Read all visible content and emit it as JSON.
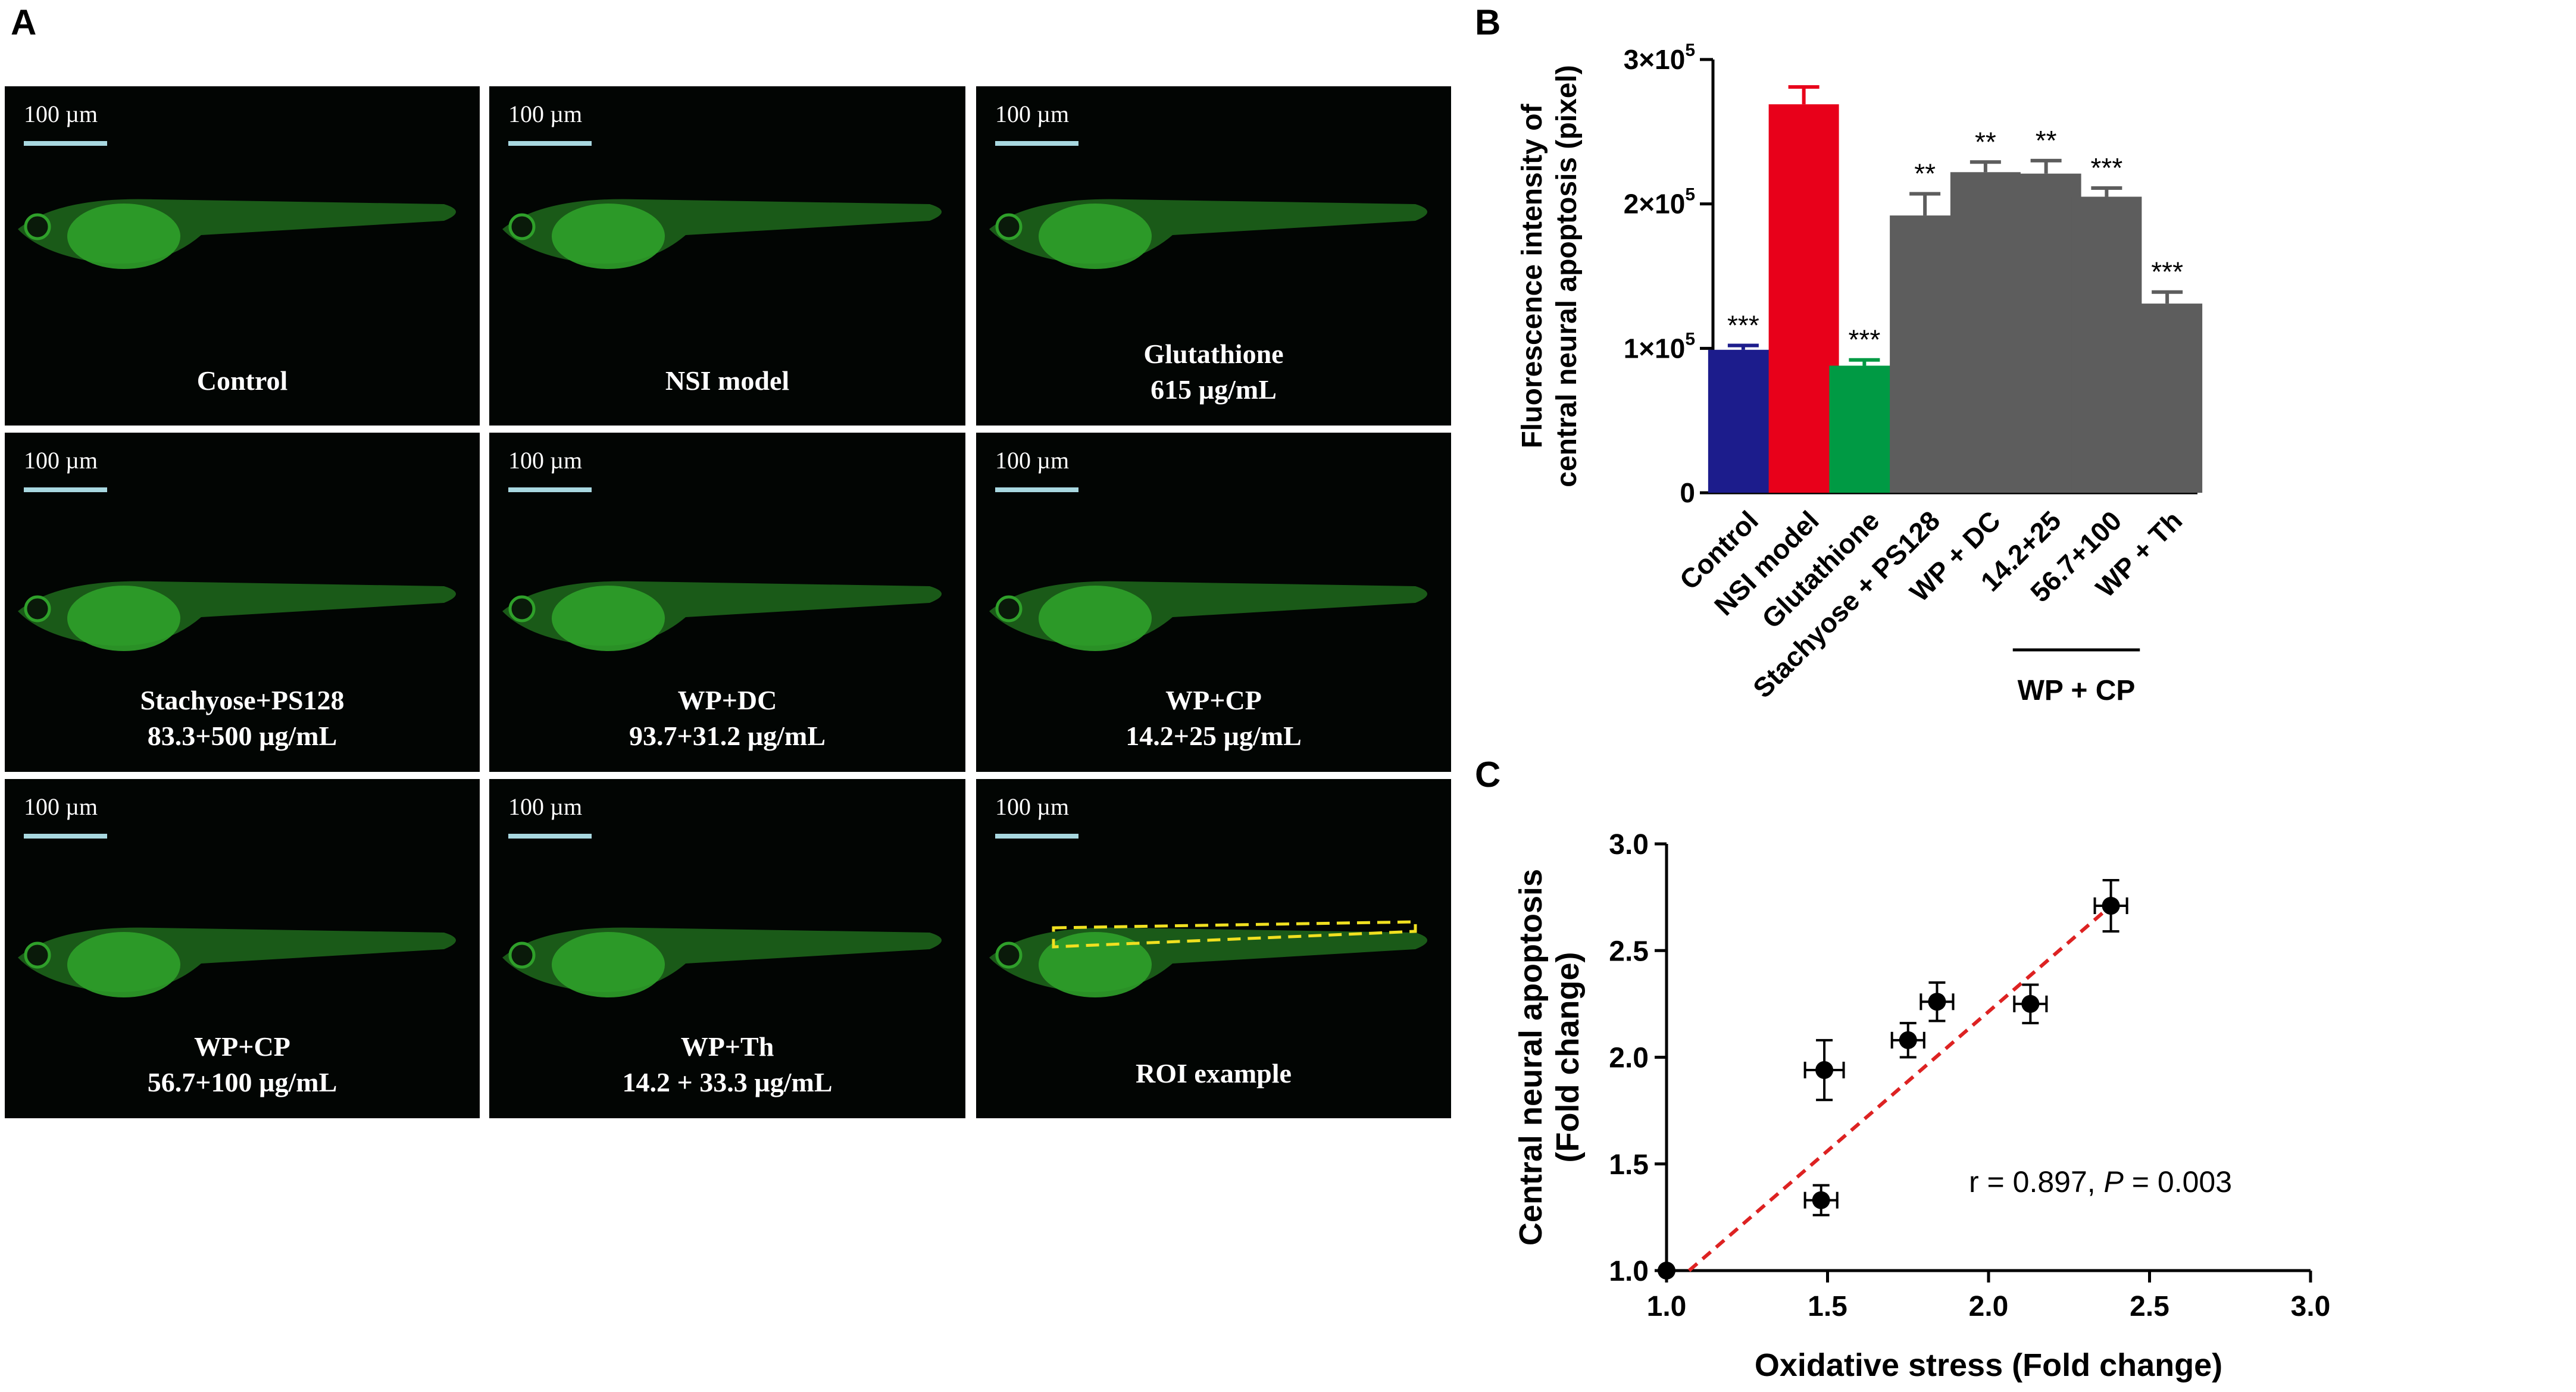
{
  "panel_labels": {
    "a": "A",
    "b": "B",
    "c": "C"
  },
  "panel_a": {
    "scale_label": "100 µm",
    "tiles": [
      {
        "lines": [
          "Control"
        ]
      },
      {
        "lines": [
          "NSI model"
        ]
      },
      {
        "lines": [
          "Glutathione",
          "615 µg/mL"
        ]
      },
      {
        "lines": [
          "Stachyose+PS128",
          "83.3+500 µg/mL"
        ]
      },
      {
        "lines": [
          "WP+DC",
          "93.7+31.2 µg/mL"
        ]
      },
      {
        "lines": [
          "WP+CP",
          "14.2+25 µg/mL"
        ]
      },
      {
        "lines": [
          "WP+CP",
          "56.7+100 µg/mL"
        ]
      },
      {
        "lines": [
          "WP+Th",
          "14.2 + 33.3 µg/mL"
        ]
      },
      {
        "lines": [
          "ROI example"
        ]
      }
    ],
    "colors": {
      "background": "#020503",
      "fish": "#2fa02a",
      "scale_bar": "#a8d8e0",
      "roi": "#f0e020",
      "text": "#ffffff"
    }
  },
  "chart_data": [
    {
      "panel": "B",
      "type": "bar",
      "ylabel_lines": [
        "Fluorescence intensity of",
        "central neural apoptosis  (pixel)"
      ],
      "ylim": [
        0,
        300000
      ],
      "yticks": [
        {
          "value": 0,
          "label": "0"
        },
        {
          "value": 100000,
          "label": "1×10",
          "exp": "5"
        },
        {
          "value": 200000,
          "label": "2×10",
          "exp": "5"
        },
        {
          "value": 300000,
          "label": "3×10",
          "exp": "5"
        }
      ],
      "categories": [
        "Control",
        "NSI model",
        "Glutathione",
        "Stachyose + PS128",
        "WP + DC",
        "14.2+25",
        "56.7+100",
        "WP + Th"
      ],
      "values": [
        99000,
        269000,
        88000,
        192000,
        222000,
        221000,
        205000,
        131000
      ],
      "errors": [
        3000,
        12000,
        4000,
        15000,
        7000,
        9000,
        6000,
        8000
      ],
      "significance": [
        "***",
        "",
        "***",
        "**",
        "**",
        "**",
        "***",
        "***"
      ],
      "colors": [
        "#1c1c8c",
        "#e8001a",
        "#009a44",
        "#5d5d5d",
        "#5d5d5d",
        "#5d5d5d",
        "#5d5d5d",
        "#5d5d5d"
      ],
      "group_label": {
        "text": "WP + CP",
        "spans": [
          "14.2+25",
          "56.7+100"
        ]
      }
    },
    {
      "panel": "C",
      "type": "scatter",
      "title": "",
      "xlabel": "Oxidative stress (Fold change)",
      "ylabel_lines": [
        "Central neural apoptosis",
        "(Fold change)"
      ],
      "xlim": [
        1.0,
        3.0
      ],
      "ylim": [
        1.0,
        3.0
      ],
      "xticks": [
        "1.0",
        "1.5",
        "2.0",
        "2.5",
        "3.0"
      ],
      "yticks": [
        "1.0",
        "1.5",
        "2.0",
        "2.5",
        "3.0"
      ],
      "points": [
        {
          "x": 1.0,
          "y": 1.0,
          "xerr": 0,
          "yerr": 0
        },
        {
          "x": 1.48,
          "y": 1.33,
          "xerr": 0.05,
          "yerr": 0.07
        },
        {
          "x": 1.49,
          "y": 1.94,
          "xerr": 0.06,
          "yerr": 0.14
        },
        {
          "x": 1.75,
          "y": 2.08,
          "xerr": 0.05,
          "yerr": 0.08
        },
        {
          "x": 1.84,
          "y": 2.26,
          "xerr": 0.05,
          "yerr": 0.09
        },
        {
          "x": 2.13,
          "y": 2.25,
          "xerr": 0.05,
          "yerr": 0.09
        },
        {
          "x": 2.38,
          "y": 2.71,
          "xerr": 0.05,
          "yerr": 0.12
        }
      ],
      "fit_line": {
        "x": [
          1.07,
          2.38
        ],
        "y": [
          1.0,
          2.71
        ],
        "color": "#dd2222"
      },
      "annotation": {
        "prefix": "r = 0.897,  ",
        "italic": "P",
        "suffix": " = 0.003"
      }
    }
  ]
}
